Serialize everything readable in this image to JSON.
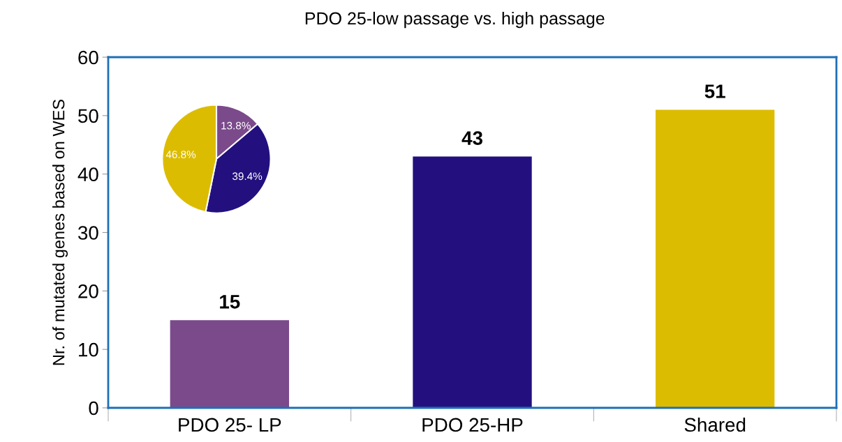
{
  "chart_data": [
    {
      "type": "bar",
      "title": "PDO 25-low passage vs. high passage",
      "ylabel": "Nr. of mutated genes based on WES",
      "categories": [
        "PDO 25- LP",
        "PDO 25-HP",
        "Shared"
      ],
      "values": [
        15,
        43,
        51
      ],
      "colors": [
        "#7b4a8b",
        "#23107e",
        "#dcbc00"
      ],
      "ylim": [
        0,
        60
      ],
      "yticks": [
        0,
        10,
        20,
        30,
        40,
        50,
        60
      ],
      "data_labels": true,
      "grid": false,
      "legend": false
    },
    {
      "type": "pie",
      "categories": [
        null,
        null,
        null
      ],
      "values": [
        13.8,
        39.4,
        46.8
      ],
      "value_labels": [
        "13.8%",
        "39.4%",
        "46.8%"
      ],
      "colors": [
        "#7b4a8b",
        "#23107e",
        "#dcbc00"
      ],
      "legend": false
    }
  ]
}
